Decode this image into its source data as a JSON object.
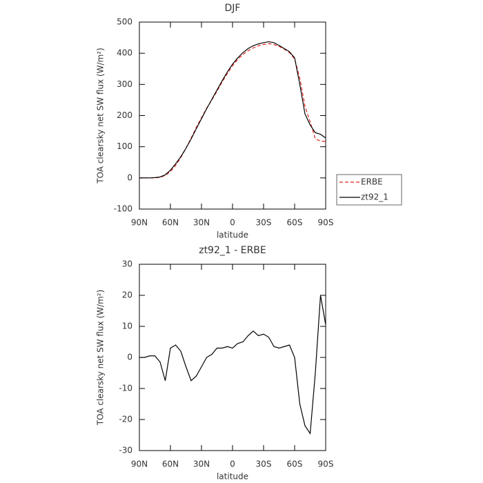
{
  "chart_data": [
    {
      "type": "line",
      "title": "DJF",
      "x_label": "latitude",
      "y_label": "TOA clearsky net SW flux (W/m²)",
      "x": [
        90,
        85,
        80,
        75,
        70,
        65,
        60,
        55,
        50,
        45,
        40,
        35,
        30,
        25,
        20,
        15,
        10,
        5,
        0,
        -5,
        -10,
        -15,
        -20,
        -25,
        -30,
        -35,
        -40,
        -45,
        -50,
        -55,
        -60,
        -65,
        -70,
        -75,
        -80,
        -85,
        -90
      ],
      "series": [
        {
          "name": "ERBE",
          "color": "#e0201b",
          "style": "dashed",
          "values": [
            0,
            0,
            0,
            0,
            2,
            8,
            20,
            40,
            65,
            95,
            128,
            162,
            193,
            224,
            250,
            278,
            308,
            335,
            360,
            380,
            396,
            408,
            417,
            424,
            428,
            431,
            428,
            422,
            413,
            402,
            382,
            320,
            230,
            180,
            125,
            118,
            117
          ]
        },
        {
          "name": "zt92_1",
          "color": "#000000",
          "style": "solid",
          "values": [
            0,
            0,
            0,
            1,
            3,
            10,
            25,
            45,
            68,
            95,
            125,
            158,
            190,
            222,
            252,
            282,
            312,
            340,
            365,
            385,
            402,
            415,
            424,
            430,
            434,
            437,
            434,
            425,
            415,
            405,
            385,
            300,
            205,
            170,
            145,
            140,
            128
          ]
        }
      ],
      "xlim": [
        90,
        -90
      ],
      "xticks": [
        {
          "value": 90,
          "label": "90N"
        },
        {
          "value": 60,
          "label": "60N"
        },
        {
          "value": 30,
          "label": "30N"
        },
        0,
        {
          "value": -30,
          "label": "30S"
        },
        {
          "value": -60,
          "label": "60S"
        },
        {
          "value": -90,
          "label": "90S"
        }
      ],
      "ylim": [
        -100,
        500
      ],
      "yticks": [
        -100,
        0,
        100,
        200,
        300,
        400,
        500
      ],
      "legend": "right"
    },
    {
      "type": "line",
      "title": "zt92_1 - ERBE",
      "x_label": "latitude",
      "y_label": "TOA clearsky net SW flux (W/m²)",
      "x": [
        90,
        85,
        80,
        75,
        70,
        65,
        60,
        55,
        50,
        45,
        40,
        35,
        30,
        25,
        20,
        15,
        10,
        5,
        0,
        -5,
        -10,
        -15,
        -20,
        -25,
        -30,
        -35,
        -40,
        -45,
        -50,
        -55,
        -60,
        -65,
        -70,
        -75,
        -80,
        -85,
        -90
      ],
      "series": [
        {
          "color": "#000000",
          "style": "solid",
          "values": [
            0,
            0,
            0.5,
            0.5,
            -1.5,
            -7.5,
            3,
            4,
            2,
            -3,
            -7.5,
            -6,
            -3,
            0,
            1,
            3,
            3,
            3.5,
            3,
            4.5,
            5,
            7,
            8.5,
            7,
            7.5,
            6.5,
            3.5,
            3,
            3.5,
            4,
            0,
            -15,
            -22,
            -24.5,
            -5,
            20,
            10.5
          ]
        }
      ],
      "xlim": [
        90,
        -90
      ],
      "xticks": [
        {
          "value": 90,
          "label": "90N"
        },
        {
          "value": 60,
          "label": "60N"
        },
        {
          "value": 30,
          "label": "30N"
        },
        0,
        {
          "value": -30,
          "label": "30S"
        },
        {
          "value": -60,
          "label": "60S"
        },
        {
          "value": -90,
          "label": "90S"
        }
      ],
      "ylim": [
        -30,
        30
      ],
      "yticks": [
        -30,
        -20,
        -10,
        0,
        10,
        20,
        30
      ]
    }
  ]
}
